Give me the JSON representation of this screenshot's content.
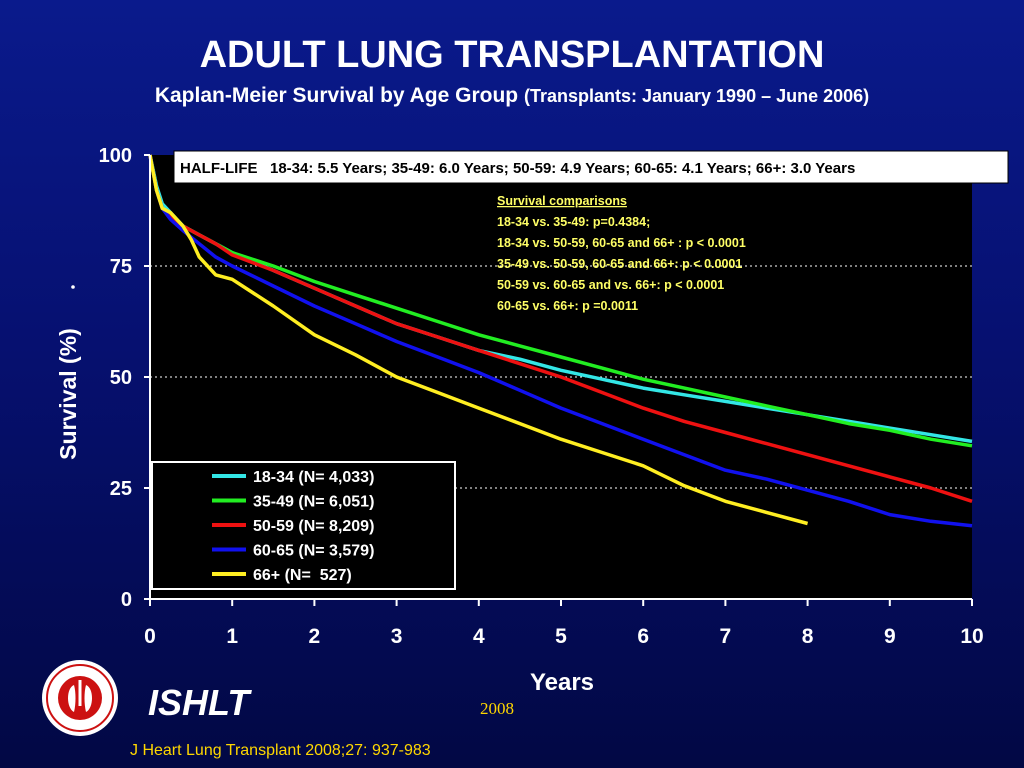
{
  "title": "ADULT LUNG TRANSPLANTATION",
  "subtitle_main": "Kaplan-Meier Survival by Age Group",
  "subtitle_note": "(Transplants: January 1990 – June 2006)",
  "half_life": "HALF-LIFE   18-34: 5.5 Years; 35-49: 6.0 Years; 50-59: 4.9 Years; 60-65: 4.1 Years; 66+: 3.0 Years",
  "comparisons": {
    "heading": "Survival comparisons",
    "lines": [
      "18-34 vs. 35-49: p=0.4384;",
      "18-34 vs. 50-59, 60-65 and 66+ : p < 0.0001",
      "35-49 vs. 50-59, 60-65 and 66+: p < 0.0001",
      "50-59 vs. 60-65 and vs. 66+: p < 0.0001",
      "60-65 vs. 66+: p =0.0011"
    ]
  },
  "footer": {
    "org": "ISHLT",
    "year": "2008",
    "citation": "J Heart Lung Transplant 2008;27: 937-983"
  },
  "colors": {
    "plot_bg": "#000000",
    "axis": "#ffffff",
    "comparisons_text": "#ffff66"
  },
  "logo_icon": "ishlt-seal-icon",
  "chart_data": {
    "type": "line",
    "xlabel": "Years",
    "ylabel": "Survival (%)",
    "xlim": [
      0,
      10
    ],
    "ylim": [
      0,
      100
    ],
    "xticks": [
      "0",
      "1",
      "2",
      "3",
      "4",
      "5",
      "6",
      "7",
      "8",
      "9",
      "10"
    ],
    "yticks": [
      "0",
      "25",
      "50",
      "75",
      "100"
    ],
    "grid": "dotted horizontal at 25, 50, 75",
    "legend": "lower-left",
    "series": [
      {
        "name": "18-34 (N= 4,033)",
        "color": "#33e6e6",
        "x": [
          0,
          0.08,
          0.15,
          0.25,
          0.4,
          0.6,
          0.8,
          1,
          1.5,
          2,
          2.5,
          3,
          3.5,
          4,
          4.5,
          5,
          5.5,
          6,
          6.5,
          7,
          7.5,
          8,
          8.5,
          9,
          9.5,
          10
        ],
        "y": [
          100,
          93,
          89,
          87,
          84,
          82,
          80,
          78,
          74,
          70,
          66,
          62,
          59,
          56,
          54,
          51.5,
          49.5,
          47.5,
          46,
          44.5,
          43,
          41.5,
          40,
          38.5,
          37,
          35.5
        ]
      },
      {
        "name": "35-49 (N= 6,051)",
        "color": "#22ee22",
        "x": [
          0,
          0.08,
          0.15,
          0.25,
          0.4,
          0.6,
          0.8,
          1,
          1.5,
          2,
          2.5,
          3,
          3.5,
          4,
          4.5,
          5,
          5.5,
          6,
          6.5,
          7,
          7.5,
          8,
          8.5,
          9,
          9.5,
          10
        ],
        "y": [
          100,
          92,
          88,
          86,
          84,
          82,
          80,
          78,
          75,
          71.5,
          68.5,
          65.5,
          62.5,
          59.5,
          57,
          54.5,
          52,
          49.5,
          47.5,
          45.5,
          43.5,
          41.5,
          39.5,
          38,
          36,
          34.5
        ]
      },
      {
        "name": "50-59 (N= 8,209)",
        "color": "#ee1111",
        "x": [
          0,
          0.08,
          0.15,
          0.25,
          0.4,
          0.6,
          0.8,
          1,
          1.5,
          2,
          2.5,
          3,
          3.5,
          4,
          4.5,
          5,
          5.5,
          6,
          6.5,
          7,
          7.5,
          8,
          8.5,
          9,
          9.5,
          10
        ],
        "y": [
          100,
          92,
          88,
          86,
          84,
          82,
          80,
          77.5,
          74,
          70,
          66,
          62,
          59,
          56,
          53,
          50,
          46.5,
          43,
          40,
          37.5,
          35,
          32.5,
          30,
          27.5,
          25,
          22
        ]
      },
      {
        "name": "60-65 (N= 3,579)",
        "color": "#1111ee",
        "x": [
          0,
          0.08,
          0.15,
          0.25,
          0.4,
          0.6,
          0.8,
          1,
          1.5,
          2,
          2.5,
          3,
          3.5,
          4,
          4.5,
          5,
          5.5,
          6,
          6.5,
          7,
          7.5,
          8,
          8.5,
          9,
          9.5,
          10
        ],
        "y": [
          100,
          92,
          88,
          85.5,
          83,
          80,
          77,
          75,
          70.5,
          66,
          62,
          58,
          54.5,
          51,
          47,
          43,
          39.5,
          36,
          32.5,
          29,
          27,
          24.5,
          22,
          19,
          17.5,
          16.5
        ]
      },
      {
        "name": "66+ (N=  527)",
        "color": "#ffee22",
        "x": [
          0,
          0.08,
          0.15,
          0.25,
          0.4,
          0.5,
          0.6,
          0.8,
          1,
          1.5,
          2,
          2.5,
          3,
          3.5,
          4,
          4.5,
          5,
          5.5,
          6,
          6.5,
          7,
          7.5,
          8
        ],
        "y": [
          100,
          92,
          88,
          87,
          84,
          81,
          77,
          73,
          72,
          66,
          59.5,
          55,
          50,
          46.5,
          43,
          39.5,
          36,
          33,
          30,
          25.5,
          22,
          19.5,
          17
        ]
      }
    ]
  }
}
